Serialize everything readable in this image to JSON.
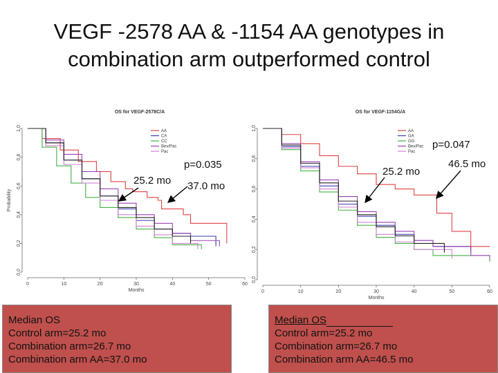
{
  "title_line1": "VEGF -2578 AA & -1154 AA genotypes in",
  "title_line2": "combination arm outperformed control",
  "chart_data": [
    {
      "type": "line",
      "title": "OS for VEGF-2578C/A",
      "xlabel": "Months",
      "ylabel": "Probability",
      "xlim": [
        0,
        60
      ],
      "ylim": [
        0,
        1
      ],
      "xticks": [
        0,
        10,
        20,
        30,
        40,
        50,
        60
      ],
      "yticks": [
        0,
        0.2,
        0.4,
        0.6,
        0.8,
        1.0
      ],
      "legend": [
        "AA",
        "CA",
        "CC",
        "Bev/Pac",
        "Pac"
      ],
      "legend_position": "top-right",
      "series": [
        {
          "name": "AA",
          "color": "#e04040",
          "x": [
            0,
            4,
            9,
            14,
            19,
            23,
            27,
            29,
            33,
            36,
            37,
            43,
            45,
            52,
            55
          ],
          "y": [
            1.0,
            0.93,
            0.85,
            0.77,
            0.7,
            0.63,
            0.58,
            0.56,
            0.52,
            0.5,
            0.44,
            0.4,
            0.34,
            0.34,
            0.2
          ]
        },
        {
          "name": "CA",
          "color": "#3a3ab0",
          "x": [
            0,
            5,
            10,
            15,
            20,
            25,
            30,
            35,
            40,
            45,
            52
          ],
          "y": [
            1.0,
            0.9,
            0.78,
            0.65,
            0.53,
            0.44,
            0.36,
            0.3,
            0.27,
            0.25,
            0.18
          ]
        },
        {
          "name": "CC",
          "color": "#40b040",
          "x": [
            0,
            4,
            8,
            12,
            16,
            20,
            25,
            30,
            35,
            40,
            48
          ],
          "y": [
            1.0,
            0.87,
            0.74,
            0.62,
            0.52,
            0.45,
            0.38,
            0.3,
            0.24,
            0.19,
            0.16
          ]
        },
        {
          "name": "Bev/Pac",
          "color": "#9a40b0",
          "x": [
            0,
            5,
            10,
            15,
            20,
            25,
            30,
            35,
            40,
            45,
            53
          ],
          "y": [
            1.0,
            0.92,
            0.82,
            0.7,
            0.58,
            0.48,
            0.4,
            0.34,
            0.27,
            0.22,
            0.18
          ]
        },
        {
          "name": "Pac",
          "color": "#d080d0",
          "x": [
            0,
            5,
            10,
            15,
            20,
            25,
            30,
            35,
            40,
            47
          ],
          "y": [
            1.0,
            0.88,
            0.75,
            0.62,
            0.5,
            0.4,
            0.32,
            0.26,
            0.2,
            0.16
          ]
        },
        {
          "name": "Control",
          "color": "#222222",
          "x": [
            0,
            5,
            10,
            15,
            20,
            25,
            30,
            35,
            40,
            45
          ],
          "y": [
            1.0,
            0.9,
            0.78,
            0.65,
            0.53,
            0.45,
            0.38,
            0.3,
            0.25,
            0.2
          ]
        }
      ]
    },
    {
      "type": "line",
      "title": "OS for VEGF-1154G/A",
      "xlabel": "Months",
      "ylabel": "",
      "xlim": [
        0,
        60
      ],
      "ylim": [
        0,
        1
      ],
      "xticks": [
        0,
        10,
        20,
        30,
        40,
        50,
        60
      ],
      "yticks": [
        0,
        0.2,
        0.4,
        0.6,
        0.8,
        1.0
      ],
      "legend": [
        "AA",
        "GA",
        "GG",
        "Bev/Pac",
        "Pac"
      ],
      "legend_position": "top-right",
      "series": [
        {
          "name": "AA",
          "color": "#e04040",
          "x": [
            0,
            5,
            10,
            15,
            20,
            25,
            30,
            35,
            40,
            46,
            50,
            55,
            60
          ],
          "y": [
            1.0,
            0.96,
            0.9,
            0.82,
            0.75,
            0.7,
            0.63,
            0.6,
            0.56,
            0.44,
            0.32,
            0.22,
            0.22
          ]
        },
        {
          "name": "GA",
          "color": "#3a3ab0",
          "x": [
            0,
            5,
            10,
            15,
            20,
            25,
            30,
            35,
            40,
            45,
            55
          ],
          "y": [
            1.0,
            0.88,
            0.75,
            0.62,
            0.5,
            0.42,
            0.36,
            0.3,
            0.26,
            0.22,
            0.18
          ]
        },
        {
          "name": "GG",
          "color": "#40b040",
          "x": [
            0,
            5,
            10,
            15,
            20,
            25,
            30,
            35,
            40,
            45,
            60
          ],
          "y": [
            1.0,
            0.86,
            0.72,
            0.58,
            0.46,
            0.36,
            0.28,
            0.24,
            0.2,
            0.16,
            0.12
          ]
        },
        {
          "name": "Bev/Pac",
          "color": "#9a40b0",
          "x": [
            0,
            5,
            10,
            15,
            20,
            25,
            30,
            35,
            40,
            45,
            55,
            60
          ],
          "y": [
            1.0,
            0.9,
            0.78,
            0.66,
            0.55,
            0.45,
            0.38,
            0.32,
            0.26,
            0.22,
            0.16,
            0.14
          ]
        },
        {
          "name": "Pac",
          "color": "#d080d0",
          "x": [
            0,
            5,
            10,
            15,
            20,
            25,
            30,
            35,
            40,
            50
          ],
          "y": [
            1.0,
            0.87,
            0.74,
            0.6,
            0.48,
            0.38,
            0.3,
            0.25,
            0.2,
            0.14
          ]
        },
        {
          "name": "Control",
          "color": "#222222",
          "x": [
            0,
            5,
            10,
            15,
            20,
            25,
            30,
            35,
            40,
            48
          ],
          "y": [
            1.0,
            0.89,
            0.77,
            0.64,
            0.52,
            0.43,
            0.35,
            0.29,
            0.24,
            0.18
          ]
        }
      ]
    }
  ],
  "annotations": {
    "left_p": "p=0.035",
    "left_median_control": "25.2 mo",
    "left_median_aa": "37.0 mo",
    "right_p": "p=0.047",
    "right_median_control": "25.2 mo",
    "right_median_aa": "46.5 mo"
  },
  "box_left": {
    "heading": "Median  OS",
    "line1": "Control arm=25.2 mo",
    "line2": "Combination arm=26.7 mo",
    "line3": "Combination arm AA=37.0 mo"
  },
  "box_right": {
    "heading": "Median  OS",
    "line1": "Control arm=25.2 mo",
    "line2": "Combination arm=26.7 mo",
    "line3": "Combination arm AA=46.5 mo"
  }
}
